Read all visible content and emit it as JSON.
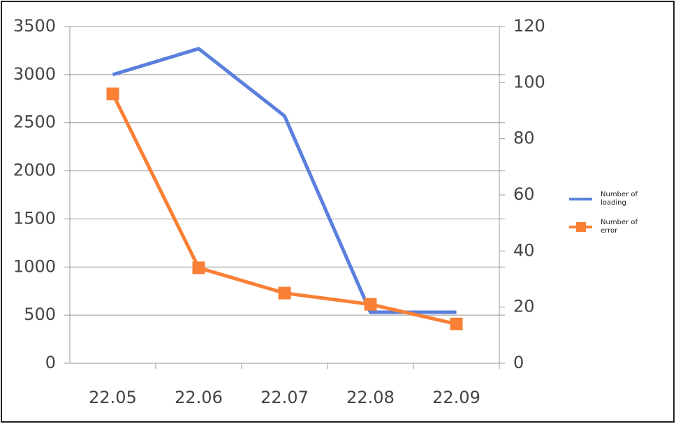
{
  "chart_data": {
    "type": "line",
    "categories": [
      "22.05",
      "22.06",
      "22.07",
      "22.08",
      "22.09"
    ],
    "series": [
      {
        "name": "Number of loading",
        "color": "#5a7fdc",
        "values": [
          3000,
          3270,
          2570,
          530,
          530
        ]
      },
      {
        "name": "Number of error",
        "color": "#f98035",
        "axis": "y2",
        "marker": "square",
        "values": [
          96,
          34,
          25,
          21,
          14
        ]
      }
    ],
    "ylim": [
      0,
      3500
    ],
    "yticks": [
      0,
      500,
      1000,
      1500,
      2000,
      2500,
      3000,
      3500
    ],
    "y2lim": [
      0,
      120
    ],
    "y2ticks": [
      0,
      20,
      40,
      60,
      80,
      100,
      120
    ],
    "grid": true,
    "legend": "right"
  }
}
